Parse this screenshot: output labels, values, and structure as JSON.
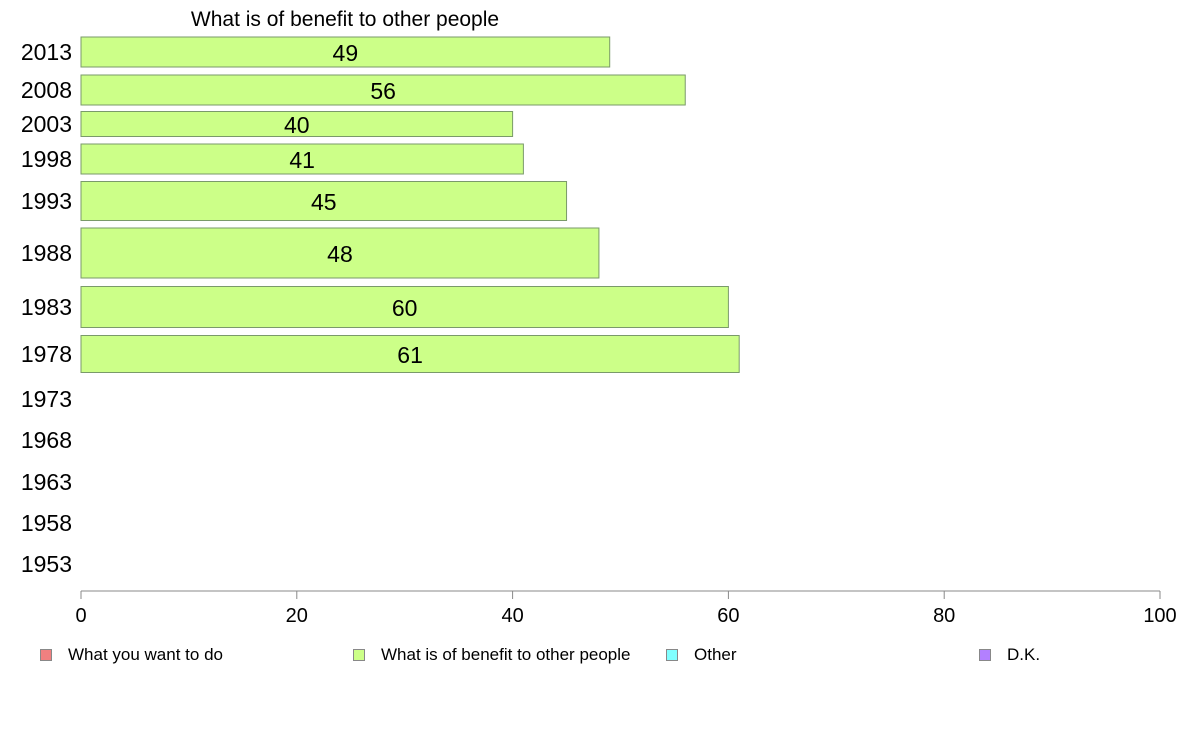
{
  "chart_data": {
    "type": "bar",
    "orientation": "horizontal",
    "title": "What is of benefit to other people",
    "categories": [
      "2013",
      "2008",
      "2003",
      "1998",
      "1993",
      "1988",
      "1983",
      "1978",
      "1973",
      "1968",
      "1963",
      "1958",
      "1953"
    ],
    "series": [
      {
        "name": "What is of benefit to other people",
        "color": "#ccff88",
        "values": [
          49,
          56,
          40,
          41,
          45,
          48,
          60,
          61,
          null,
          null,
          null,
          null,
          null
        ]
      }
    ],
    "xlim": [
      0,
      100
    ],
    "xticks": [
      "0",
      "20",
      "40",
      "60",
      "80",
      "100"
    ],
    "grid": false,
    "legend_position": "bottom",
    "legend": [
      {
        "label": "What you want to do",
        "color": "#f08080"
      },
      {
        "label": "What is of benefit to other people",
        "color": "#ccff88"
      },
      {
        "label": "Other",
        "color": "#80ffff"
      },
      {
        "label": "D.K.",
        "color": "#b380ff"
      }
    ]
  }
}
